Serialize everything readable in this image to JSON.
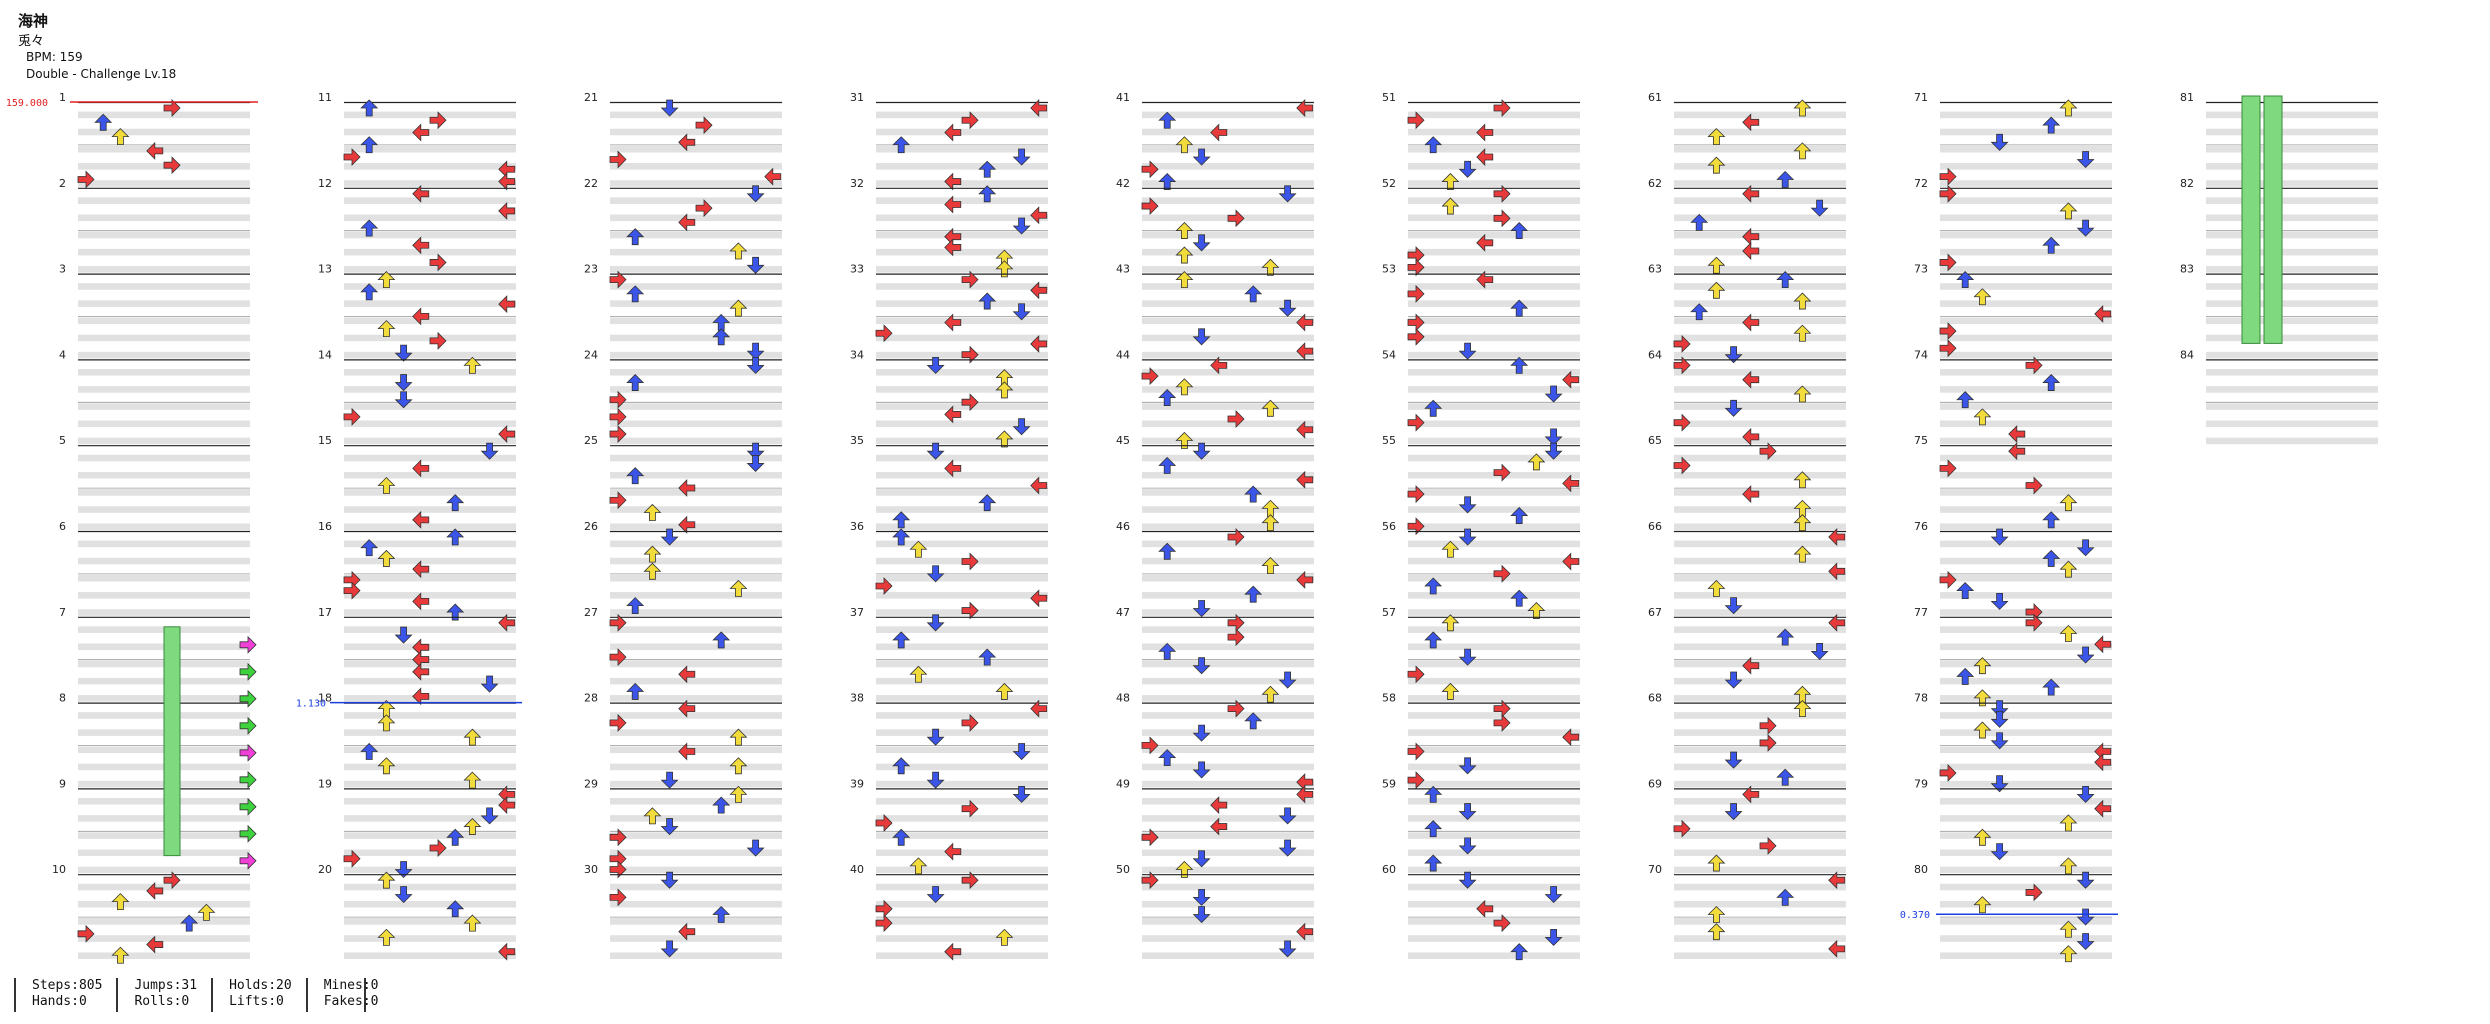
{
  "header": {
    "title": "海神",
    "artist": "兎々",
    "bpm_line": "BPM: 159",
    "difficulty_line": "Double - Challenge  Lv.18"
  },
  "markers": {
    "start_bpm": "159.000",
    "speed_change_1": "1.130",
    "speed_change_2": "0.370"
  },
  "measure_numbers": [
    "1",
    "2",
    "3",
    "4",
    "5",
    "6",
    "7",
    "8",
    "9",
    "10",
    "11",
    "12",
    "13",
    "14",
    "15",
    "16",
    "17",
    "18",
    "19",
    "20",
    "21",
    "22",
    "23",
    "24",
    "25",
    "26",
    "27",
    "28",
    "29",
    "30",
    "31",
    "32",
    "33",
    "34",
    "35",
    "36",
    "37",
    "38",
    "39",
    "40",
    "41",
    "42",
    "43",
    "44",
    "45",
    "46",
    "47",
    "48",
    "49",
    "50",
    "51",
    "52",
    "53",
    "54",
    "55",
    "56",
    "57",
    "58",
    "59",
    "60",
    "61",
    "62",
    "63",
    "64",
    "65",
    "66",
    "67",
    "68",
    "69",
    "70",
    "71",
    "72",
    "73",
    "74",
    "75",
    "76",
    "77",
    "78",
    "79",
    "80",
    "81",
    "82",
    "83",
    "84"
  ],
  "stats": {
    "steps": "Steps:805",
    "hands": "Hands:0",
    "jumps": "Jumps:31",
    "rolls": "Rolls:0",
    "holds": "Holds:20",
    "lifts": "Lifts:0",
    "mines": "Mines:0",
    "fakes": "Fakes:0"
  },
  "colors": {
    "red_note": "#e83a3a",
    "blue_note": "#3a55e8",
    "yellow_note": "#f2dc3c",
    "purple_note": "#b040f0",
    "green_note": "#3ed33e",
    "pink_note": "#f040d8",
    "hold_body": "#7fd97f",
    "row_shade": "#e1e1e1",
    "bpm_marker": "#e02020",
    "speed_marker": "#1a3ee0"
  }
}
